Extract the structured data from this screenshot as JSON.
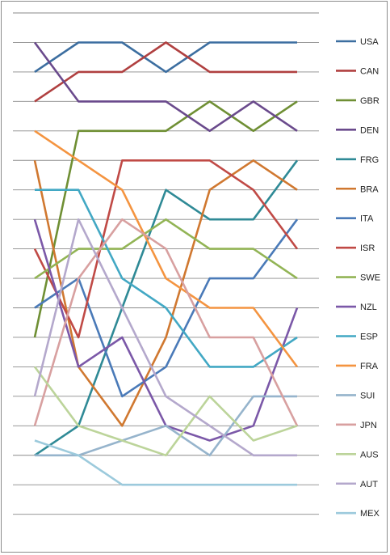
{
  "chart_data": {
    "type": "line",
    "title": "",
    "xlabel": "",
    "ylabel": "",
    "x": [
      1,
      2,
      3,
      4,
      5,
      6,
      7
    ],
    "ylim": [
      0,
      17
    ],
    "grid": true,
    "legend_position": "right",
    "series": [
      {
        "name": "USA",
        "color": "#3c6ea0",
        "values": [
          2,
          1,
          1,
          2,
          1,
          1,
          1
        ]
      },
      {
        "name": "CAN",
        "color": "#b04040",
        "values": [
          3,
          2,
          2,
          1,
          2,
          2,
          2
        ]
      },
      {
        "name": "GBR",
        "color": "#6f8f34",
        "values": [
          11,
          4,
          4,
          4,
          3,
          4,
          3
        ]
      },
      {
        "name": "DEN",
        "color": "#6a4a8c",
        "values": [
          1,
          3,
          3,
          3,
          4,
          3,
          4
        ]
      },
      {
        "name": "FRG",
        "color": "#2f8a96",
        "values": [
          15,
          14,
          10,
          6,
          7,
          7,
          5
        ]
      },
      {
        "name": "BRA",
        "color": "#d07830",
        "values": [
          5,
          12,
          14,
          11,
          6,
          5,
          6
        ]
      },
      {
        "name": "ITA",
        "color": "#4a7ab8",
        "values": [
          10,
          9,
          13,
          12,
          9,
          9,
          7
        ]
      },
      {
        "name": "ISR",
        "color": "#c04a46",
        "values": [
          8,
          11,
          5,
          5,
          5,
          6,
          8
        ]
      },
      {
        "name": "SWE",
        "color": "#92b455",
        "values": [
          9,
          8,
          8,
          7,
          8,
          8,
          9
        ]
      },
      {
        "name": "NZL",
        "color": "#7b58a8",
        "values": [
          7,
          12,
          11,
          14,
          14.5,
          14,
          10
        ]
      },
      {
        "name": "ESP",
        "color": "#42a8c4",
        "values": [
          6,
          6,
          9,
          10,
          12,
          12,
          11
        ]
      },
      {
        "name": "FRA",
        "color": "#f49440",
        "values": [
          4,
          5,
          6,
          9,
          10,
          10,
          12
        ]
      },
      {
        "name": "SUI",
        "color": "#96b4cc",
        "values": [
          15,
          15,
          14.5,
          14,
          15,
          13,
          13
        ]
      },
      {
        "name": "JPN",
        "color": "#d8a0a0",
        "values": [
          14,
          9,
          7,
          8,
          11,
          11,
          14
        ]
      },
      {
        "name": "AUS",
        "color": "#bcd49a",
        "values": [
          12,
          14,
          14.5,
          15,
          13,
          14.5,
          14
        ]
      },
      {
        "name": "AUT",
        "color": "#b4a8cc",
        "values": [
          13,
          7,
          10,
          13,
          14,
          15,
          15
        ]
      },
      {
        "name": "MEX",
        "color": "#9ccadc",
        "values": [
          14.5,
          15,
          16,
          16,
          16,
          16,
          16
        ]
      }
    ]
  }
}
